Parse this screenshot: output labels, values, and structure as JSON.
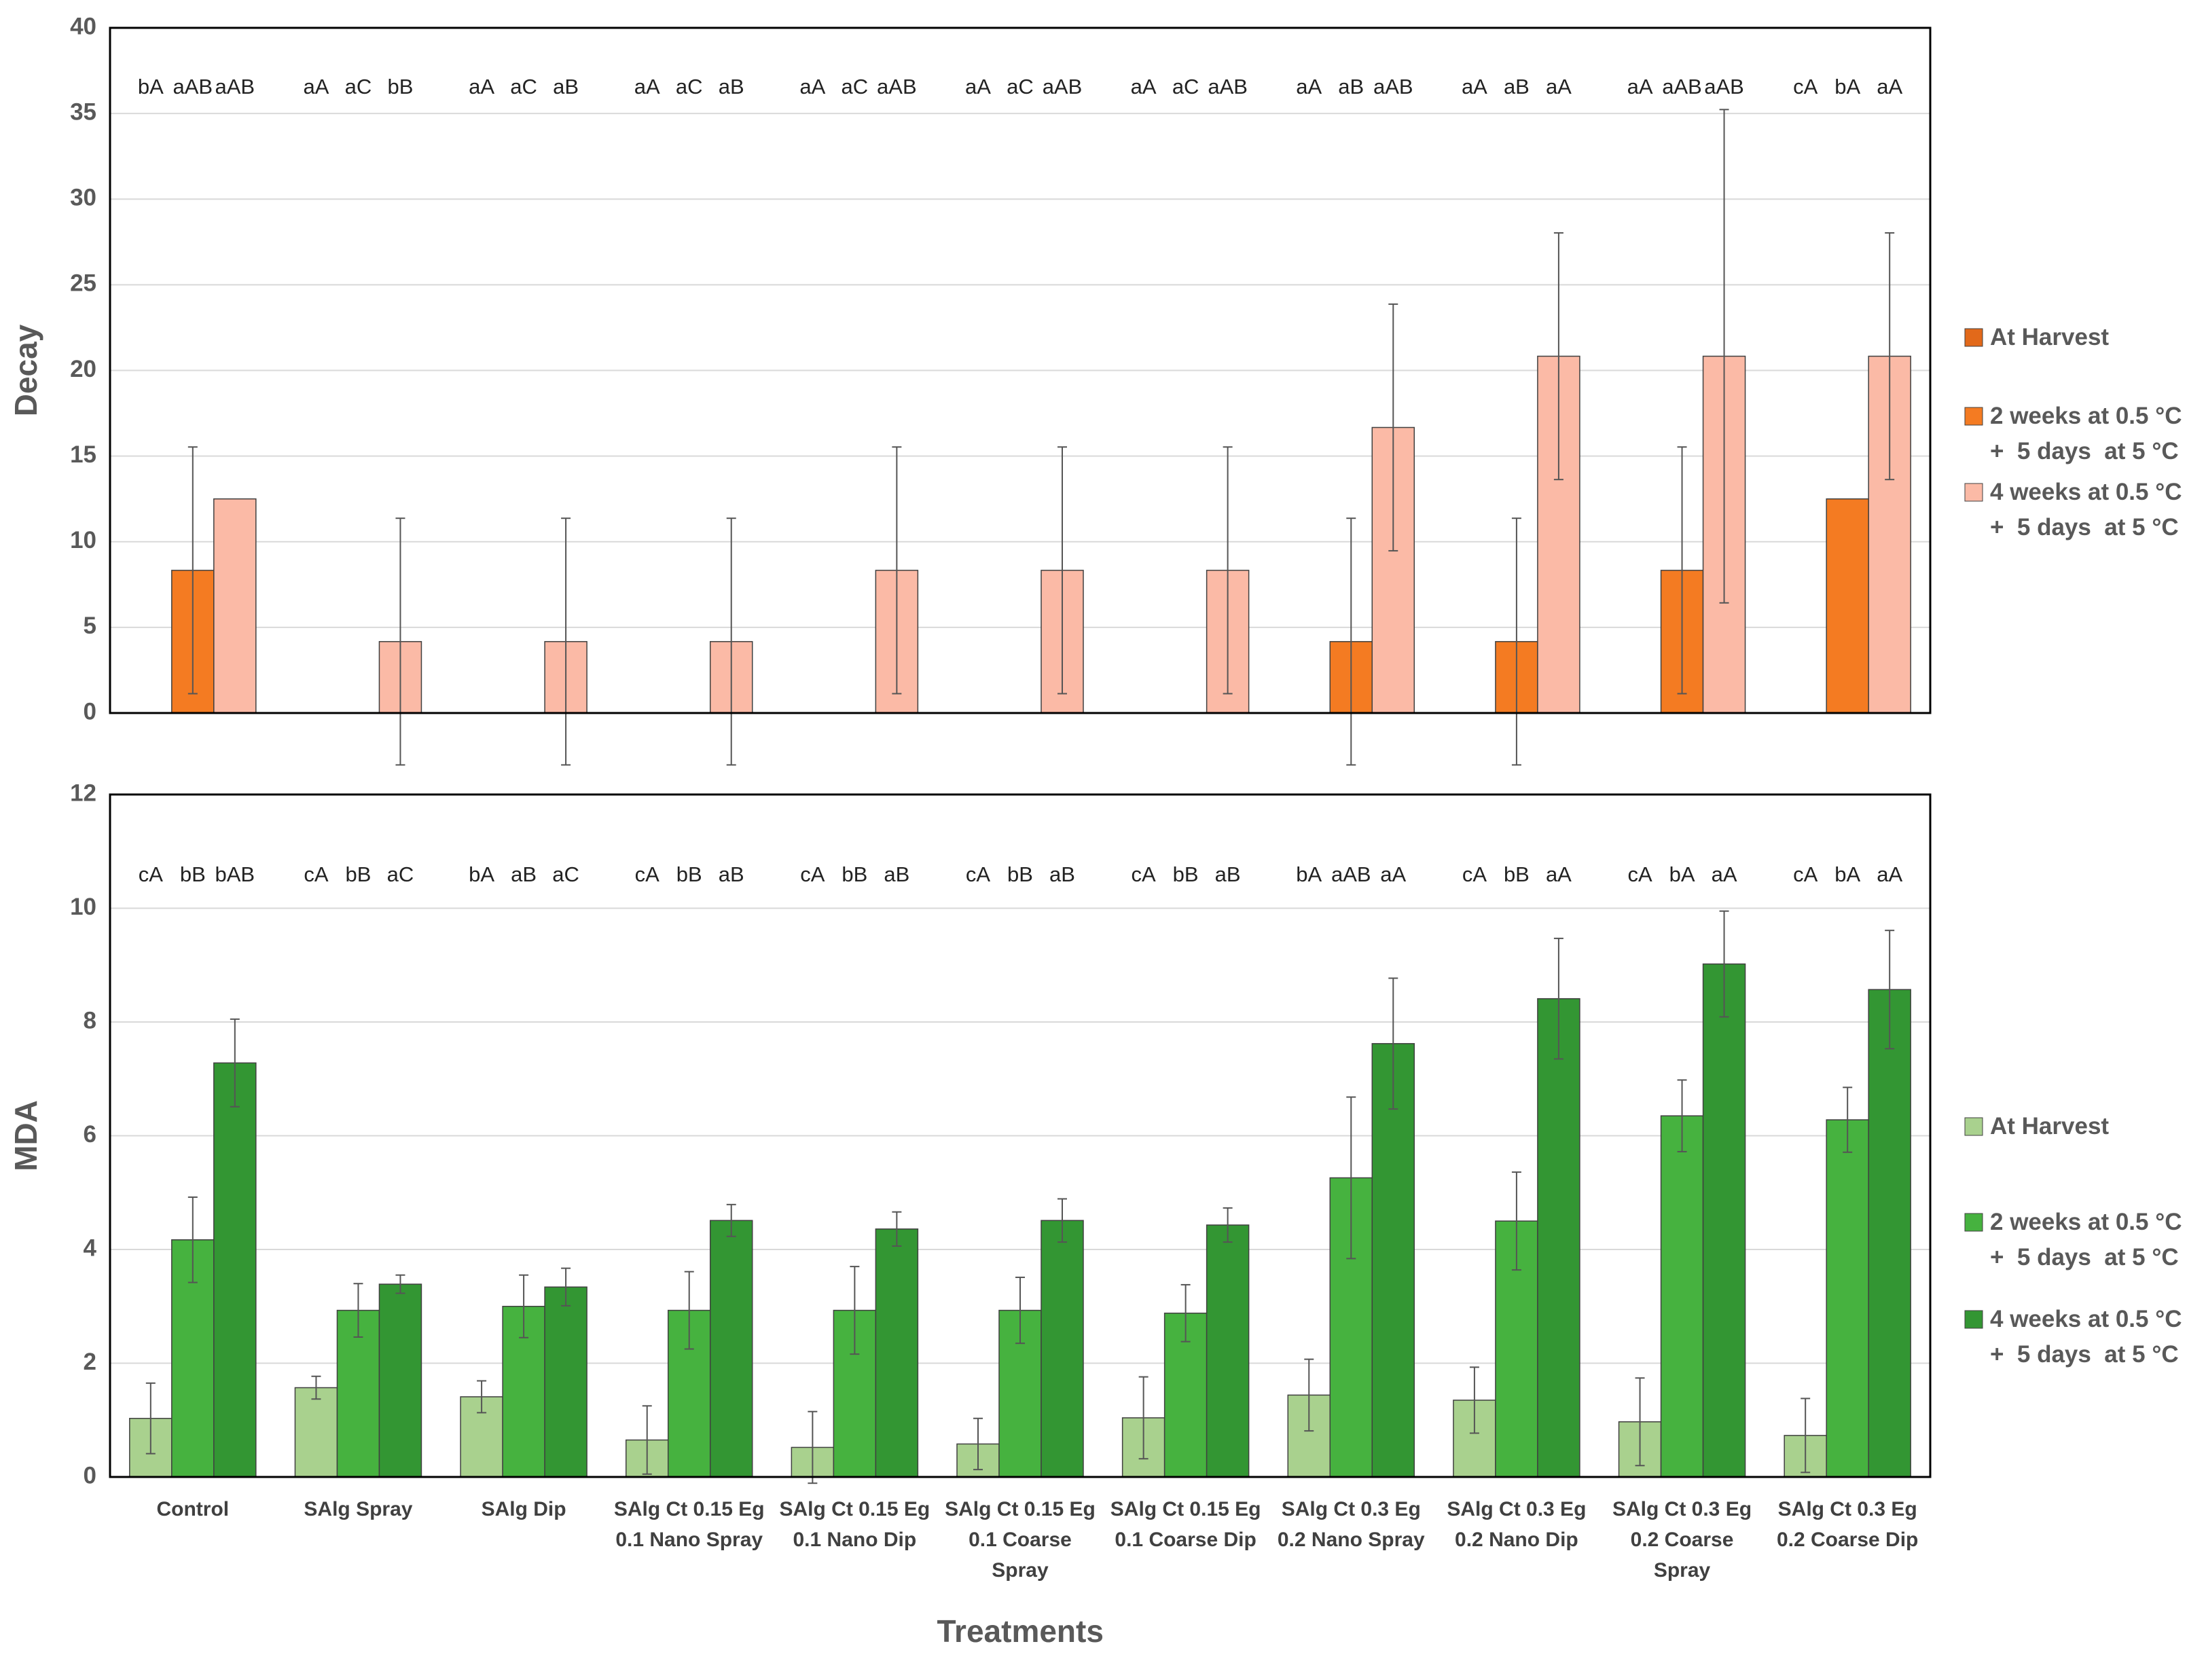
{
  "chart_data": [
    {
      "type": "bar",
      "ylabel": "Decay",
      "ylim": [
        0,
        40
      ],
      "yticks": [
        0,
        5,
        10,
        15,
        20,
        25,
        30,
        35,
        40
      ],
      "grid": true,
      "series": [
        {
          "name": "At Harvest",
          "color": "#e2691a",
          "values": [
            0,
            0,
            0,
            0,
            0,
            0,
            0,
            0,
            0,
            0,
            0
          ],
          "errors": [
            0,
            0,
            0,
            0,
            0,
            0,
            0,
            0,
            0,
            0,
            0
          ],
          "letters": [
            "bA",
            "aA",
            "aA",
            "aA",
            "aA",
            "aA",
            "aA",
            "aA",
            "aA",
            "aA",
            "cA"
          ]
        },
        {
          "name": "2 weeks at 0.5 °C\n+  5 days  at 5 °C",
          "color": "#f47b22",
          "values": [
            8.33,
            0,
            0,
            0,
            0,
            0,
            0,
            4.17,
            4.17,
            8.33,
            12.5
          ],
          "errors": [
            7.2,
            0,
            0,
            0,
            0,
            0,
            0,
            7.2,
            7.2,
            7.2,
            0
          ],
          "letters": [
            "aAB",
            "aC",
            "aC",
            "aC",
            "aC",
            "aC",
            "aC",
            "aB",
            "aB",
            "aAB",
            "bA"
          ]
        },
        {
          "name": "4 weeks at 0.5 °C\n+  5 days  at 5 °C",
          "color": "#fbbaa6",
          "values": [
            12.5,
            4.17,
            4.17,
            4.17,
            8.33,
            8.33,
            8.33,
            16.67,
            20.83,
            20.83,
            20.83
          ],
          "errors": [
            0,
            7.2,
            7.2,
            7.2,
            7.2,
            7.2,
            7.2,
            7.2,
            7.2,
            14.4,
            7.2
          ],
          "letters": [
            "aAB",
            "bB",
            "aB",
            "aB",
            "aAB",
            "aAB",
            "aAB",
            "aAB",
            "aA",
            "aAB",
            "aA"
          ]
        }
      ]
    },
    {
      "type": "bar",
      "ylabel": "MDA",
      "xlabel": "Treatments",
      "ylim": [
        0,
        12
      ],
      "yticks": [
        0,
        2,
        4,
        6,
        8,
        10,
        12
      ],
      "grid": true,
      "categories": [
        "Control",
        "SAlg  Spray",
        "SAlg  Dip",
        "SAlg Ct 0.15 Eg\n0.1 Nano Spray",
        "SAlg Ct 0.15 Eg\n0.1 Nano Dip",
        "SAlg Ct 0.15 Eg\n0.1 Coarse\nSpray",
        "SAlg Ct 0.15 Eg\n0.1 Coarse Dip",
        "SAlg Ct 0.3 Eg\n0.2 Nano Spray",
        "SAlg Ct 0.3 Eg\n0.2 Nano Dip",
        "SAlg Ct 0.3 Eg\n0.2 Coarse\nSpray",
        "SAlg Ct 0.3 Eg\n0.2 Coarse Dip"
      ],
      "series": [
        {
          "name": "At Harvest",
          "color": "#a9d18e",
          "values": [
            1.03,
            1.57,
            1.41,
            0.65,
            0.52,
            0.58,
            1.04,
            1.44,
            1.35,
            0.97,
            0.73
          ],
          "errors": [
            0.62,
            0.2,
            0.28,
            0.6,
            0.63,
            0.45,
            0.72,
            0.63,
            0.58,
            0.77,
            0.65
          ],
          "letters": [
            "cA",
            "cA",
            "bA",
            "cA",
            "cA",
            "cA",
            "cA",
            "bA",
            "cA",
            "cA",
            "cA"
          ]
        },
        {
          "name": "2 weeks at 0.5 °C\n+  5 days  at 5 °C",
          "color": "#46b23f",
          "values": [
            4.17,
            2.93,
            3.0,
            2.93,
            2.93,
            2.93,
            2.88,
            5.26,
            4.5,
            6.35,
            6.28
          ],
          "errors": [
            0.75,
            0.47,
            0.55,
            0.68,
            0.77,
            0.58,
            0.5,
            1.42,
            0.86,
            0.63,
            0.57
          ],
          "letters": [
            "bB",
            "bB",
            "aB",
            "bB",
            "bB",
            "bB",
            "bB",
            "aAB",
            "bB",
            "bA",
            "bA"
          ]
        },
        {
          "name": "4 weeks at 0.5 °C\n+  5 days  at 5 °C",
          "color": "#339633",
          "values": [
            7.28,
            3.39,
            3.34,
            4.51,
            4.36,
            4.51,
            4.43,
            7.62,
            8.41,
            9.02,
            8.57
          ],
          "errors": [
            0.77,
            0.16,
            0.33,
            0.28,
            0.3,
            0.38,
            0.3,
            1.15,
            1.06,
            0.93,
            1.04
          ],
          "letters": [
            "bAB",
            "aC",
            "aC",
            "aB",
            "aB",
            "aB",
            "aB",
            "aA",
            "aA",
            "aA",
            "aA"
          ]
        }
      ]
    }
  ]
}
